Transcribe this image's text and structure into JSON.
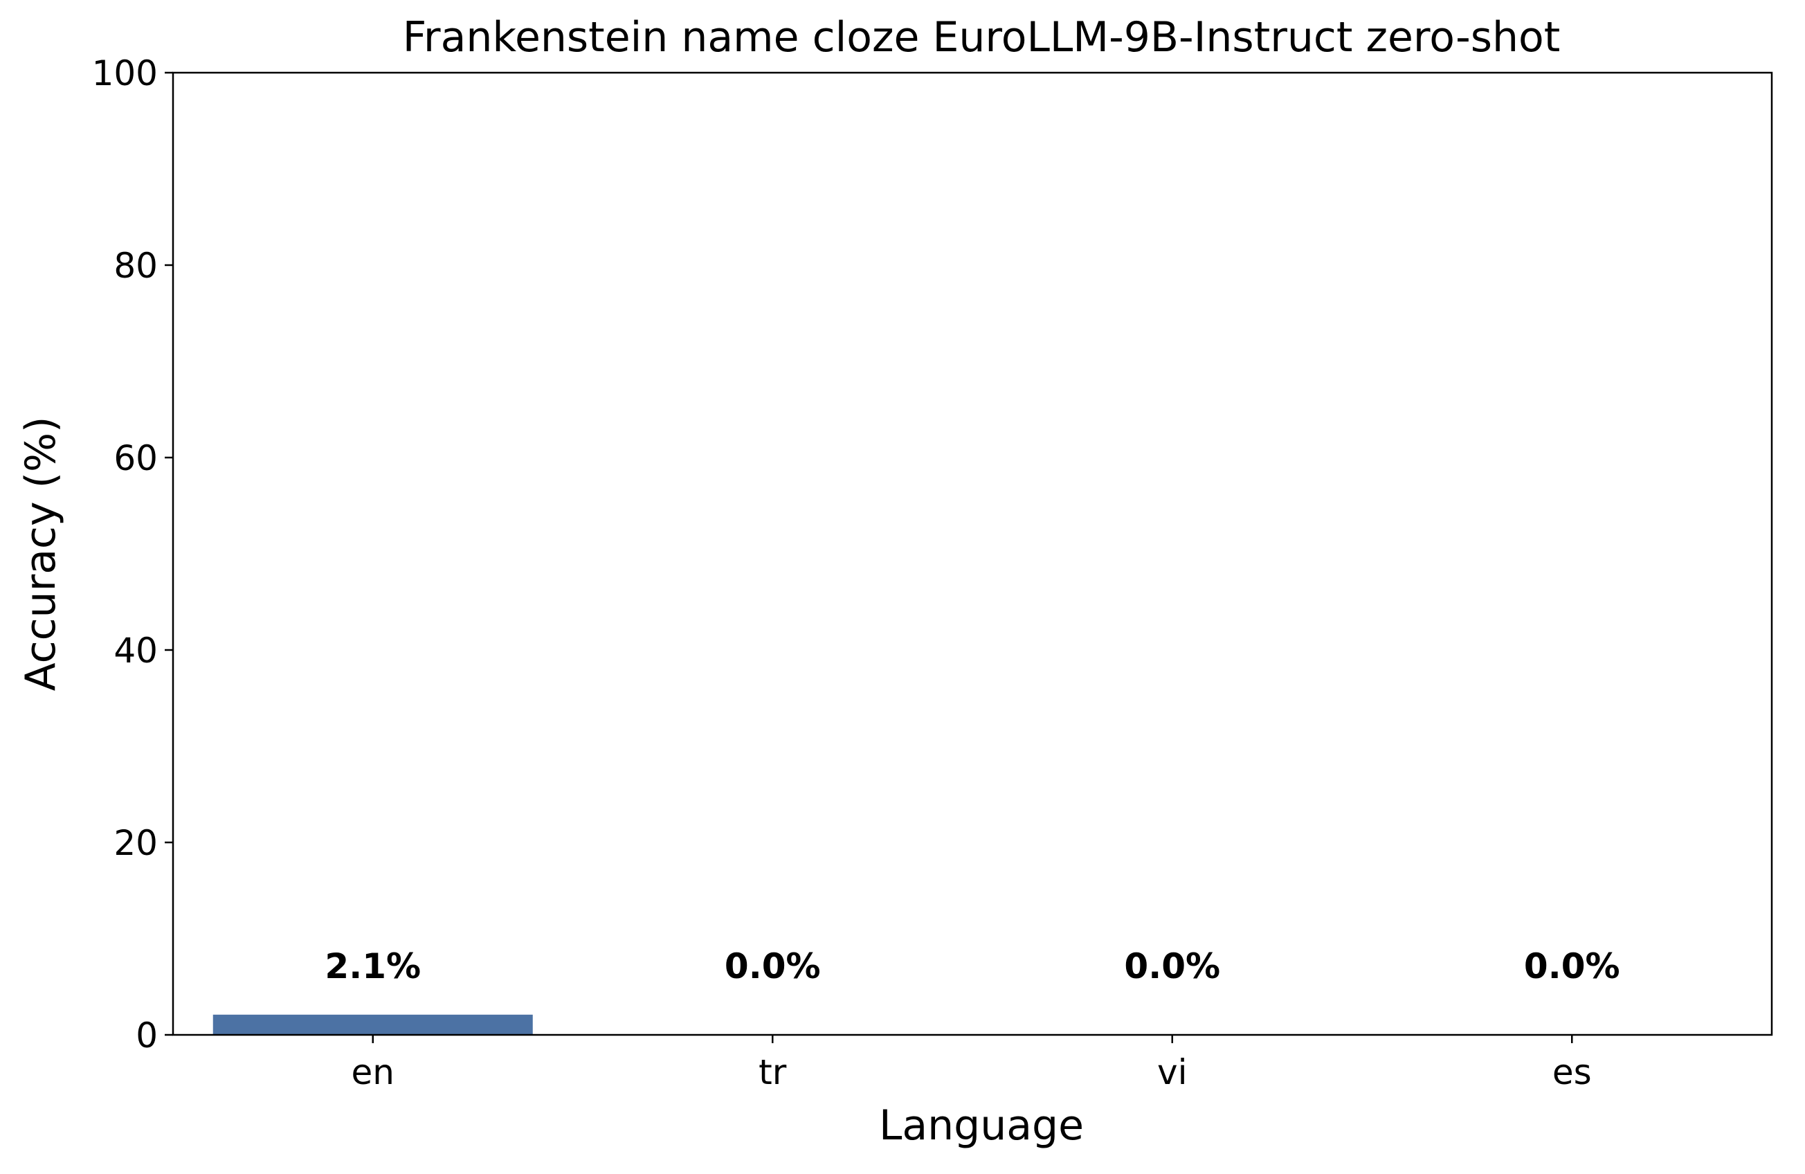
{
  "chart_data": {
    "type": "bar",
    "title": "Frankenstein name cloze EuroLLM-9B-Instruct zero-shot",
    "xlabel": "Language",
    "ylabel": "Accuracy (%)",
    "categories": [
      "en",
      "tr",
      "vi",
      "es"
    ],
    "values": [
      2.1,
      0.0,
      0.0,
      0.0
    ],
    "data_labels": [
      "2.1%",
      "0.0%",
      "0.0%",
      "0.0%"
    ],
    "ylim": [
      0,
      100
    ],
    "yticks": [
      0,
      20,
      40,
      60,
      80,
      100
    ],
    "ytick_labels": [
      "0",
      "20",
      "40",
      "60",
      "80",
      "100"
    ],
    "grid": false,
    "legend": "none",
    "bar_color": "#4c72a4"
  }
}
